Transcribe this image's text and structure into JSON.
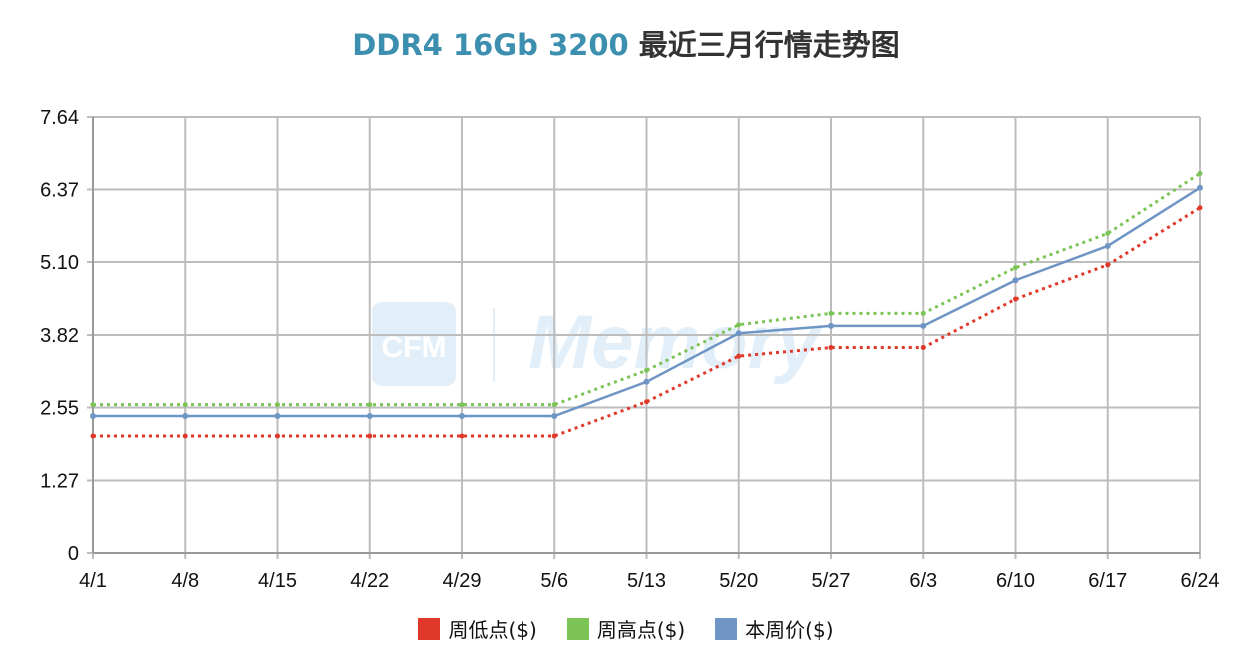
{
  "chart_data": {
    "type": "line",
    "title_part1": "DDR4 16Gb 3200",
    "title_part2": " 最近三月行情走势图",
    "xlabel": "",
    "ylabel": "",
    "categories": [
      "4/1",
      "4/8",
      "4/15",
      "4/22",
      "4/29",
      "5/6",
      "5/13",
      "5/20",
      "5/27",
      "6/3",
      "6/10",
      "6/17",
      "6/24"
    ],
    "yticks": [
      0,
      1.27,
      2.55,
      3.82,
      5.1,
      6.37,
      7.64
    ],
    "ytick_labels": [
      "0",
      "1.27",
      "2.55",
      "3.82",
      "5.10",
      "6.37",
      "7.64"
    ],
    "ylim": [
      0,
      7.64
    ],
    "grid": true,
    "legend_position": "bottom",
    "series": [
      {
        "name": "周低点($)",
        "color": "#e0392b",
        "style": "dotted",
        "values": [
          2.05,
          2.05,
          2.05,
          2.05,
          2.05,
          2.05,
          2.65,
          3.45,
          3.6,
          3.6,
          4.45,
          5.05,
          6.05
        ]
      },
      {
        "name": "周高点($)",
        "color": "#7cc455",
        "style": "dotted",
        "values": [
          2.6,
          2.6,
          2.6,
          2.6,
          2.6,
          2.6,
          3.2,
          4.0,
          4.2,
          4.2,
          5.0,
          5.6,
          6.65
        ]
      },
      {
        "name": "本周价($)",
        "color": "#6f95c4",
        "style": "solid",
        "values": [
          2.4,
          2.4,
          2.4,
          2.4,
          2.4,
          2.4,
          3.0,
          3.85,
          3.98,
          3.98,
          4.78,
          5.38,
          6.4
        ]
      }
    ]
  },
  "watermark": {
    "logo_text": "CFM",
    "brand_text": "Memory"
  }
}
